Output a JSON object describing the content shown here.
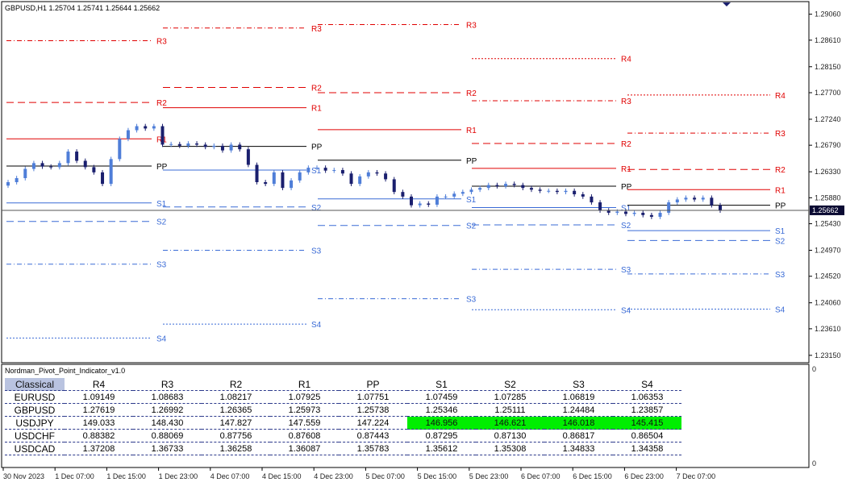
{
  "chart_data": {
    "type": "candlestick",
    "symbol_header": "GBPUSD,H1  1.25704 1.25741 1.25644 1.25662",
    "current_price": "1.25662",
    "ylim": [
      1.2305,
      1.2925
    ],
    "y_ticks": [
      "1.29060",
      "1.28610",
      "1.28150",
      "1.27700",
      "1.27240",
      "1.26790",
      "1.26330",
      "1.25880",
      "1.25430",
      "1.24970",
      "1.24520",
      "1.24060",
      "1.23610",
      "1.23150"
    ],
    "x_ticks": [
      "30 Nov 2023",
      "1 Dec 07:00",
      "1 Dec 15:00",
      "1 Dec 23:00",
      "4 Dec 07:00",
      "4 Dec 15:00",
      "4 Dec 23:00",
      "5 Dec 07:00",
      "5 Dec 15:00",
      "5 Dec 23:00",
      "6 Dec 07:00",
      "6 Dec 15:00",
      "6 Dec 23:00",
      "7 Dec 07:00"
    ],
    "close_path": [
      1.2615,
      1.2622,
      1.2638,
      1.2648,
      1.2642,
      1.2641,
      1.2648,
      1.2668,
      1.2652,
      1.2641,
      1.2632,
      1.2612,
      1.2655,
      1.269,
      1.2705,
      1.2712,
      1.2708,
      1.2712,
      1.268,
      1.2681,
      1.2678,
      1.2682,
      1.268,
      1.2676,
      1.2678,
      1.267,
      1.268,
      1.2672,
      1.2645,
      1.2615,
      1.2612,
      1.2632,
      1.2605,
      1.2618,
      1.2632,
      1.264,
      1.264,
      1.2635,
      1.2636,
      1.263,
      1.2612,
      1.2625,
      1.2632,
      1.263,
      1.262,
      1.2598,
      1.259,
      1.2575,
      1.2578,
      1.2576,
      1.259,
      1.259,
      1.2595,
      1.2598,
      1.2602,
      1.2605,
      1.261,
      1.2608,
      1.2612,
      1.261,
      1.2605,
      1.2602,
      1.26,
      1.26,
      1.2598,
      1.26,
      1.2594,
      1.259,
      1.258,
      1.2566,
      1.2562,
      1.2564,
      1.256,
      1.2562,
      1.2558,
      1.2555,
      1.2562,
      1.258,
      1.2585,
      1.2588,
      1.2585,
      1.2588,
      1.2575,
      1.2566
    ],
    "pivot_days": [
      {
        "label_offset": "in-line",
        "levels": [
          {
            "name": "R2",
            "value": 1.2753,
            "style": "r2"
          },
          {
            "name": "R1",
            "value": 1.269,
            "style": "r1"
          },
          {
            "name": "PP",
            "value": 1.2643,
            "style": "pp"
          },
          {
            "name": "S1",
            "value": 1.2579,
            "style": "s1"
          },
          {
            "name": "S2",
            "value": 1.2547,
            "style": "s2"
          },
          {
            "name": "S3",
            "value": 1.2473,
            "style": "s3"
          },
          {
            "name": "S4",
            "value": 1.2345,
            "style": "s4"
          },
          {
            "name": "R3",
            "value": 1.286,
            "style": "r3"
          }
        ]
      },
      {
        "levels": [
          {
            "name": "R3",
            "value": 1.2882,
            "style": "r3"
          },
          {
            "name": "R2",
            "value": 1.2779,
            "style": "r2"
          },
          {
            "name": "R1",
            "value": 1.2744,
            "style": "r1"
          },
          {
            "name": "PP",
            "value": 1.2677,
            "style": "pp"
          },
          {
            "name": "S1",
            "value": 1.2636,
            "style": "s1"
          },
          {
            "name": "S2",
            "value": 1.2572,
            "style": "s2"
          },
          {
            "name": "S3",
            "value": 1.2497,
            "style": "s3"
          },
          {
            "name": "S4",
            "value": 1.2369,
            "style": "s4"
          }
        ]
      },
      {
        "levels": [
          {
            "name": "R3",
            "value": 1.2888,
            "style": "r3"
          },
          {
            "name": "R2",
            "value": 1.277,
            "style": "r2"
          },
          {
            "name": "R1",
            "value": 1.2706,
            "style": "r1"
          },
          {
            "name": "PP",
            "value": 1.2653,
            "style": "pp"
          },
          {
            "name": "S1",
            "value": 1.2586,
            "style": "s1"
          },
          {
            "name": "S2",
            "value": 1.254,
            "style": "s2"
          },
          {
            "name": "S3",
            "value": 1.2413,
            "style": "s3"
          }
        ]
      },
      {
        "levels": [
          {
            "name": "R4",
            "value": 1.2829,
            "style": "r4"
          },
          {
            "name": "R3",
            "value": 1.2756,
            "style": "r3"
          },
          {
            "name": "R2",
            "value": 1.2682,
            "style": "r2"
          },
          {
            "name": "R1",
            "value": 1.2639,
            "style": "r1"
          },
          {
            "name": "PP",
            "value": 1.2608,
            "style": "pp"
          },
          {
            "name": "S1",
            "value": 1.2571,
            "style": "s1"
          },
          {
            "name": "S2",
            "value": 1.2541,
            "style": "s2"
          },
          {
            "name": "S3",
            "value": 1.2464,
            "style": "s3"
          },
          {
            "name": "S4",
            "value": 1.2394,
            "style": "s4"
          }
        ]
      },
      {
        "levels": [
          {
            "name": "R4",
            "value": 1.2766,
            "style": "r4"
          },
          {
            "name": "R3",
            "value": 1.27,
            "style": "r3"
          },
          {
            "name": "R2",
            "value": 1.2637,
            "style": "r2"
          },
          {
            "name": "R1",
            "value": 1.2602,
            "style": "r1"
          },
          {
            "name": "PP",
            "value": 1.2575,
            "style": "pp"
          },
          {
            "name": "S1",
            "value": 1.2531,
            "style": "s1"
          },
          {
            "name": "S2",
            "value": 1.2514,
            "style": "s2"
          },
          {
            "name": "S3",
            "value": 1.2456,
            "style": "s3"
          },
          {
            "name": "S4",
            "value": 1.2395,
            "style": "s4"
          }
        ]
      }
    ]
  },
  "indicator": {
    "name": "Nordman_Pivot_Point_Indicator_v1.0",
    "axis_top": "0",
    "axis_bottom": "0"
  },
  "table": {
    "headers": [
      "Classical",
      "R4",
      "R3",
      "R2",
      "R1",
      "PP",
      "S1",
      "S2",
      "S3",
      "S4"
    ],
    "rows": [
      {
        "symbol": "EURUSD",
        "values": [
          "1.09149",
          "1.08683",
          "1.08217",
          "1.07925",
          "1.07751",
          "1.07459",
          "1.07285",
          "1.06819",
          "1.06353"
        ],
        "highlight": []
      },
      {
        "symbol": "GBPUSD",
        "values": [
          "1.27619",
          "1.26992",
          "1.26365",
          "1.25973",
          "1.25738",
          "1.25346",
          "1.25111",
          "1.24484",
          "1.23857"
        ],
        "highlight": []
      },
      {
        "symbol": "USDJPY",
        "values": [
          "149.033",
          "148.430",
          "147.827",
          "147.559",
          "147.224",
          "146.956",
          "146.621",
          "146.018",
          "145.415"
        ],
        "highlight": [
          5,
          6,
          7,
          8
        ]
      },
      {
        "symbol": "USDCHF",
        "values": [
          "0.88382",
          "0.88069",
          "0.87756",
          "0.87608",
          "0.87443",
          "0.87295",
          "0.87130",
          "0.86817",
          "0.86504"
        ],
        "highlight": []
      },
      {
        "symbol": "USDCAD",
        "values": [
          "1.37208",
          "1.36733",
          "1.36258",
          "1.36087",
          "1.35783",
          "1.35612",
          "1.35308",
          "1.34833",
          "1.34358"
        ],
        "highlight": []
      }
    ]
  },
  "colors": {
    "resistance": "#e00000",
    "support": "#3a6bd6",
    "pivot": "#000000",
    "bull_candle": "#4f7ed8",
    "bear_candle": "#1a1f6e",
    "highlight": "#00ee00"
  }
}
